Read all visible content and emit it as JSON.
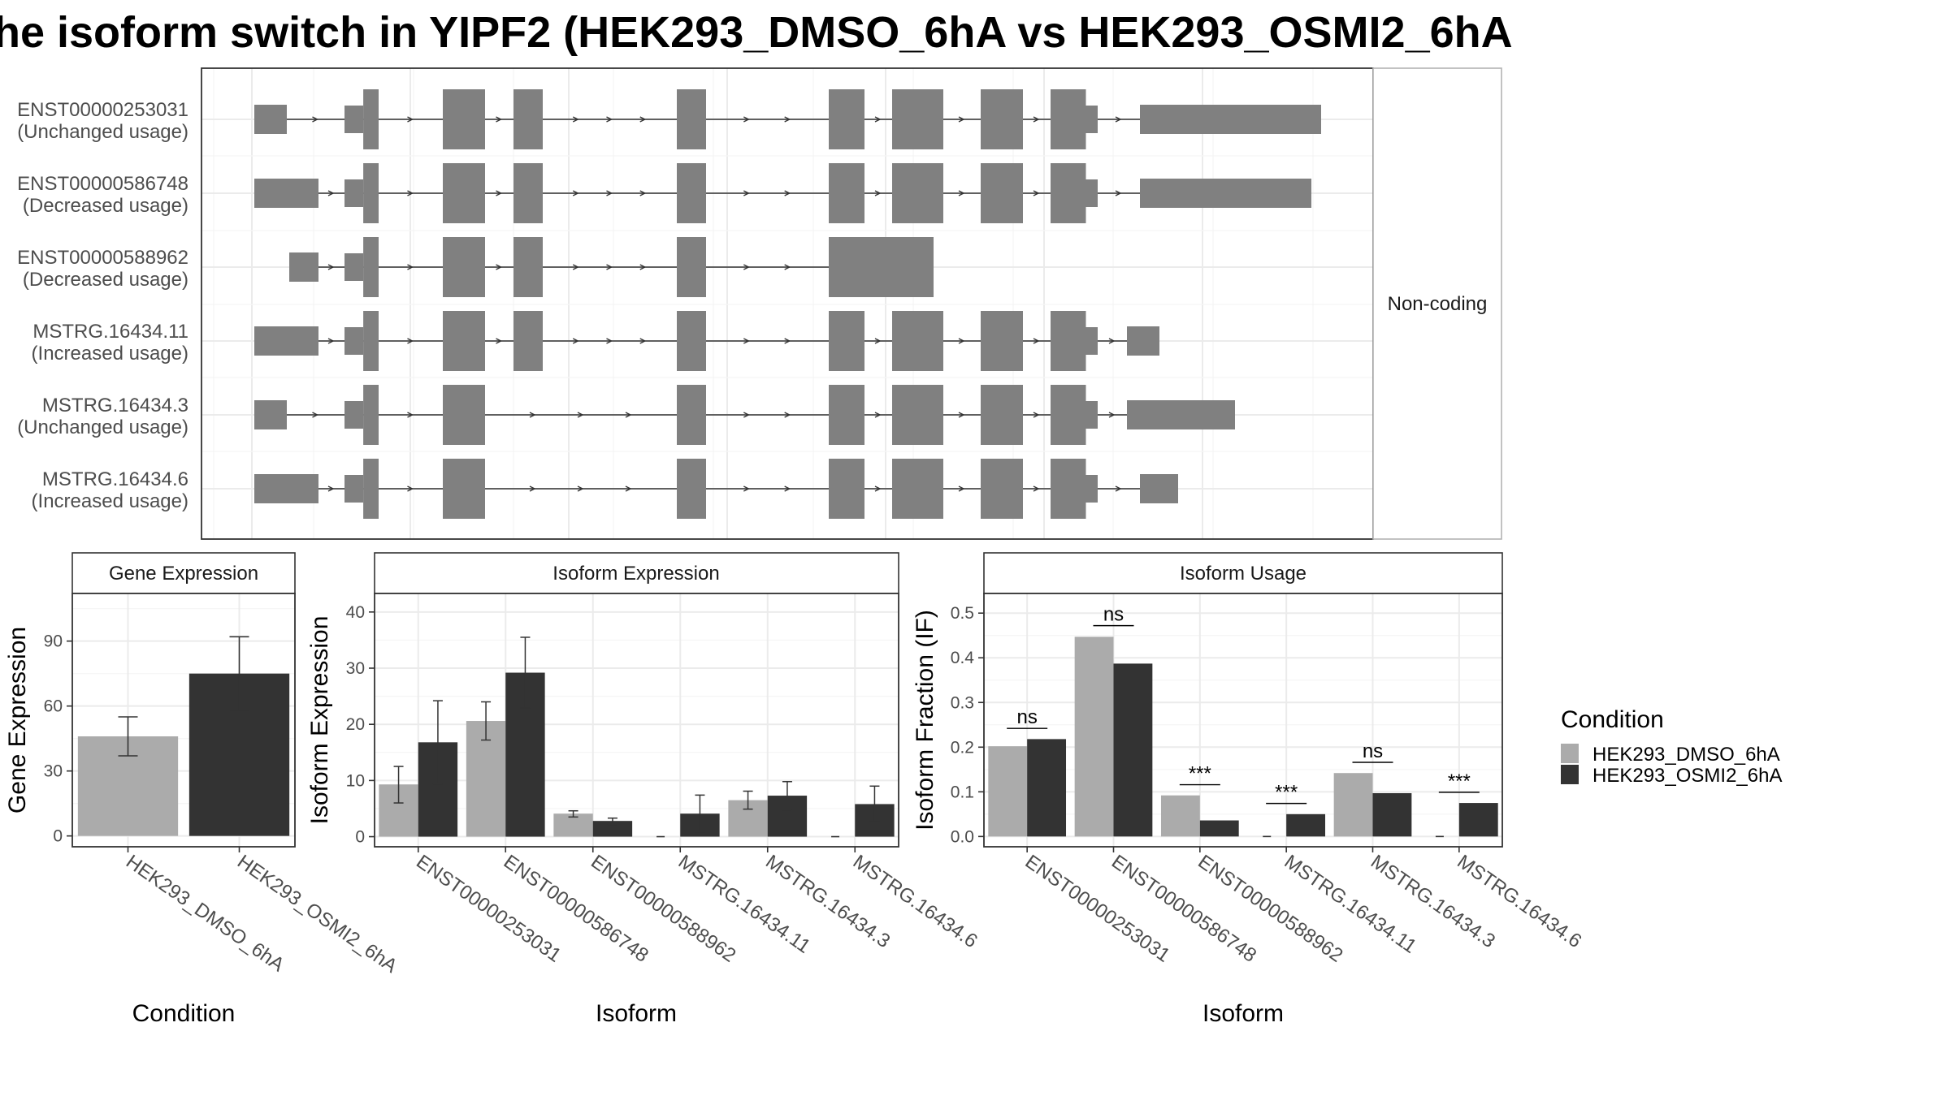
{
  "title": "he isoform switch in YIPF2 (HEK293_DMSO_6hA vs HEK293_OSMI2_6hA",
  "colors": {
    "dmso": "#ABABAB",
    "osmi": "#333333",
    "exon": "#808080"
  },
  "structure_panel": {
    "strip_label": "Non-coding",
    "isoforms": [
      {
        "id": "ENST00000253031",
        "usage": "(Unchanged usage)"
      },
      {
        "id": "ENST00000586748",
        "usage": "(Decreased usage)"
      },
      {
        "id": "ENST00000588962",
        "usage": "(Decreased usage)"
      },
      {
        "id": "MSTRG.16434.11",
        "usage": "(Increased usage)"
      },
      {
        "id": "MSTRG.16434.3",
        "usage": "(Unchanged usage)"
      },
      {
        "id": "MSTRG.16434.6",
        "usage": "(Increased usage)"
      }
    ]
  },
  "legend": {
    "title": "Condition",
    "items": [
      "HEK293_DMSO_6hA",
      "HEK293_OSMI2_6hA"
    ]
  },
  "chart_data": [
    {
      "type": "bar",
      "title": "Gene Expression",
      "xlabel": "Condition",
      "ylabel": "Gene Expression",
      "categories": [
        "HEK293_DMSO_6hA",
        "HEK293_OSMI2_6hA"
      ],
      "values": [
        46,
        75
      ],
      "error_low": [
        37,
        58
      ],
      "error_high": [
        55,
        92
      ],
      "ylim": [
        -5,
        112
      ],
      "yticks": [
        0,
        30,
        60,
        90
      ],
      "ytick_labels": [
        "0",
        "30",
        "60",
        "90"
      ]
    },
    {
      "type": "bar",
      "title": "Isoform Expression",
      "xlabel": "Isoform",
      "ylabel": "Isoform Expression",
      "categories": [
        "ENST00000253031",
        "ENST00000586748",
        "ENST00000588962",
        "MSTRG.16434.11",
        "MSTRG.16434.3",
        "MSTRG.16434.6"
      ],
      "series": [
        {
          "name": "HEK293_DMSO_6hA",
          "values": [
            9.3,
            20.6,
            4.1,
            0,
            6.5,
            0
          ],
          "error_low": [
            6.0,
            17.2,
            3.5,
            0,
            4.9,
            0
          ],
          "error_high": [
            12.5,
            24.0,
            4.6,
            0,
            8.1,
            0
          ]
        },
        {
          "name": "HEK293_OSMI2_6hA",
          "values": [
            16.8,
            29.2,
            2.8,
            4.1,
            7.3,
            5.8
          ],
          "error_low": [
            9.4,
            22.9,
            2.2,
            0.8,
            4.8,
            2.7
          ],
          "error_high": [
            24.2,
            35.5,
            3.3,
            7.4,
            9.8,
            9.0
          ]
        }
      ],
      "ylim": [
        -1.8,
        43.3
      ],
      "yticks": [
        0,
        10,
        20,
        30,
        40
      ],
      "ytick_labels": [
        "0",
        "10",
        "20",
        "30",
        "40"
      ]
    },
    {
      "type": "bar",
      "title": "Isoform Usage",
      "xlabel": "Isoform",
      "ylabel": "Isoform Fraction (IF)",
      "categories": [
        "ENST00000253031",
        "ENST00000586748",
        "ENST00000588962",
        "MSTRG.16434.11",
        "MSTRG.16434.3",
        "MSTRG.16434.6"
      ],
      "series": [
        {
          "name": "HEK293_DMSO_6hA",
          "values": [
            0.202,
            0.447,
            0.092,
            0,
            0.142,
            0
          ]
        },
        {
          "name": "HEK293_OSMI2_6hA",
          "values": [
            0.218,
            0.387,
            0.036,
            0.05,
            0.097,
            0.075
          ]
        }
      ],
      "significance": [
        "ns",
        "ns",
        "***",
        "***",
        "ns",
        "***"
      ],
      "sig_level": [
        0.242,
        0.472,
        0.116,
        0.074,
        0.166,
        0.099
      ],
      "ylim": [
        -0.023,
        0.544
      ],
      "yticks": [
        0.0,
        0.1,
        0.2,
        0.3,
        0.4,
        0.5
      ],
      "ytick_labels": [
        "0.0",
        "0.1",
        "0.2",
        "0.3",
        "0.4",
        "0.5"
      ]
    }
  ]
}
